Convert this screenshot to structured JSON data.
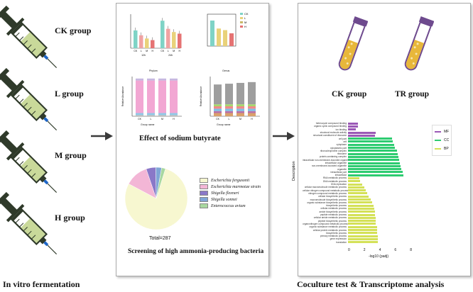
{
  "left": {
    "groups": [
      {
        "label": "CK group"
      },
      {
        "label": "L group"
      },
      {
        "label": "M group"
      },
      {
        "label": "H group"
      }
    ],
    "footer": "In vitro fermentation"
  },
  "middle": {
    "caption_top": "Effect of sodium butyrate",
    "caption_bottom": "Screening of high ammonia-producing bacteria",
    "chart1": {
      "xlabels": [
        "CK",
        "L",
        "M",
        "H",
        "CK",
        "L",
        "M",
        "H"
      ],
      "sub": [
        "12h",
        "24h"
      ],
      "values": [
        0.55,
        0.4,
        0.3,
        0.25,
        0.85,
        0.6,
        0.5,
        0.45
      ]
    },
    "chart2": {
      "legend": [
        "CK",
        "L",
        "M",
        "H"
      ],
      "values": [
        0.8,
        0.55,
        0.5,
        0.4
      ]
    },
    "chart3": {
      "title": "Phylum",
      "xlabel": "Group name",
      "ylabel": "Relative Abundance",
      "xticks": [
        "CK",
        "L",
        "M",
        "H"
      ]
    },
    "chart4": {
      "title": "Genus",
      "xlabel": "Group name",
      "ylabel": "Relative Abundance",
      "xticks": [
        "CK",
        "L",
        "M",
        "H"
      ]
    },
    "pie": {
      "total": "Total=287",
      "legend": [
        {
          "label": "Escherichia fergusonii",
          "color": "#f7f7d0"
        },
        {
          "label": "Escherichia marmotae strain",
          "color": "#f3b6d6"
        },
        {
          "label": "Shigella flexneri",
          "color": "#8a78c8"
        },
        {
          "label": "Shigella sonnei",
          "color": "#7fa6d6"
        },
        {
          "label": "Enterococcus avium",
          "color": "#a8d8a0"
        }
      ],
      "values": [
        78,
        12,
        5,
        3,
        2
      ]
    }
  },
  "right": {
    "tubes": [
      {
        "label": "CK group"
      },
      {
        "label": "TR group"
      }
    ],
    "go": {
      "ylabel": "Description",
      "xlabel": "-log10 (padj)",
      "legend": [
        {
          "label": "MF",
          "color": "#9b59b6"
        },
        {
          "label": "CC",
          "color": "#2ecc71"
        },
        {
          "label": "BP",
          "color": "#d4e157"
        }
      ],
      "xticks": [
        "0",
        "2",
        "4",
        "6",
        "8"
      ],
      "rows": [
        {
          "label": "heterocycle compound binding",
          "value": 1.2,
          "cat": "MF"
        },
        {
          "label": "organic cyclic compound binding",
          "value": 1.2,
          "cat": "MF"
        },
        {
          "label": "ion binding",
          "value": 1.0,
          "cat": "MF"
        },
        {
          "label": "structural molecule activity",
          "value": 3.5,
          "cat": "MF"
        },
        {
          "label": "structural constituent of ribosome",
          "value": 3.4,
          "cat": "MF"
        },
        {
          "label": "cell part",
          "value": 5.5,
          "cat": "CC"
        },
        {
          "label": "cell",
          "value": 5.6,
          "cat": "CC"
        },
        {
          "label": "cytoplasm",
          "value": 5.8,
          "cat": "CC"
        },
        {
          "label": "cytoplasmic part",
          "value": 5.9,
          "cat": "CC"
        },
        {
          "label": "ribonucleoprotein complex",
          "value": 6.1,
          "cat": "CC"
        },
        {
          "label": "ribosome",
          "value": 6.2,
          "cat": "CC"
        },
        {
          "label": "protein-containing complex",
          "value": 6.3,
          "cat": "CC"
        },
        {
          "label": "intracellular non-membrane-bounded organelle",
          "value": 6.4,
          "cat": "CC"
        },
        {
          "label": "intracellular organelle",
          "value": 6.5,
          "cat": "CC"
        },
        {
          "label": "non-membrane-bounded organelle",
          "value": 6.6,
          "cat": "CC"
        },
        {
          "label": "organelle",
          "value": 6.7,
          "cat": "CC"
        },
        {
          "label": "intracellular part",
          "value": 6.8,
          "cat": "CC"
        },
        {
          "label": "intracellular",
          "value": 6.9,
          "cat": "CC"
        },
        {
          "label": "RNA metabolic process",
          "value": 1.4,
          "cat": "BP"
        },
        {
          "label": "DNA metabolic process",
          "value": 1.5,
          "cat": "BP"
        },
        {
          "label": "DNA replication",
          "value": 1.8,
          "cat": "BP"
        },
        {
          "label": "cellular macromolecule metabolic process",
          "value": 2.0,
          "cat": "BP"
        },
        {
          "label": "cellular nitrogen compound metabolic process",
          "value": 2.2,
          "cat": "BP"
        },
        {
          "label": "nitrogen compound metabolic process",
          "value": 2.4,
          "cat": "BP"
        },
        {
          "label": "cellular biosynthetic process",
          "value": 2.6,
          "cat": "BP"
        },
        {
          "label": "macromolecule biosynthetic process",
          "value": 2.8,
          "cat": "BP"
        },
        {
          "label": "organic substance biosynthetic process",
          "value": 3.0,
          "cat": "BP"
        },
        {
          "label": "biosynthetic process",
          "value": 3.2,
          "cat": "BP"
        },
        {
          "label": "cellular metabolic process",
          "value": 3.3,
          "cat": "BP"
        },
        {
          "label": "amide biosynthetic process",
          "value": 3.4,
          "cat": "BP"
        },
        {
          "label": "peptide metabolic process",
          "value": 3.4,
          "cat": "BP"
        },
        {
          "label": "cellular amide metabolic process",
          "value": 3.5,
          "cat": "BP"
        },
        {
          "label": "peptide biosynthetic process",
          "value": 3.5,
          "cat": "BP"
        },
        {
          "label": "organonitrogen compound metabolic process",
          "value": 3.5,
          "cat": "BP"
        },
        {
          "label": "organic substance metabolic process",
          "value": 3.6,
          "cat": "BP"
        },
        {
          "label": "cellular protein metabolic process",
          "value": 3.6,
          "cat": "BP"
        },
        {
          "label": "biosynthetic process",
          "value": 3.6,
          "cat": "BP"
        },
        {
          "label": "primary metabolic process",
          "value": 3.7,
          "cat": "BP"
        },
        {
          "label": "gene expression",
          "value": 3.7,
          "cat": "BP"
        },
        {
          "label": "translation",
          "value": 3.7,
          "cat": "BP"
        }
      ]
    },
    "footer": "Coculture test & Transcriptome analysis"
  }
}
